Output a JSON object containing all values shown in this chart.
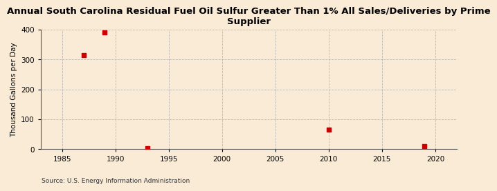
{
  "title": "Annual South Carolina Residual Fuel Oil Sulfur Greater Than 1% All Sales/Deliveries by Prime\nSupplier",
  "ylabel": "Thousand Gallons per Day",
  "source": "Source: U.S. Energy Information Administration",
  "background_color": "#faebd7",
  "plot_background_color": "#faebd7",
  "data_x": [
    1987,
    1989,
    1993,
    2010,
    2019
  ],
  "data_y": [
    315,
    390,
    3,
    65,
    10
  ],
  "marker_color": "#cc0000",
  "marker_size": 20,
  "xlim": [
    1983,
    2022
  ],
  "ylim": [
    0,
    400
  ],
  "xticks": [
    1985,
    1990,
    1995,
    2000,
    2005,
    2010,
    2015,
    2020
  ],
  "yticks": [
    0,
    100,
    200,
    300,
    400
  ],
  "grid_color": "#aaaaaa",
  "grid_linestyle": "--",
  "title_fontsize": 9.5,
  "label_fontsize": 7.5,
  "tick_fontsize": 7.5,
  "source_fontsize": 6.5
}
